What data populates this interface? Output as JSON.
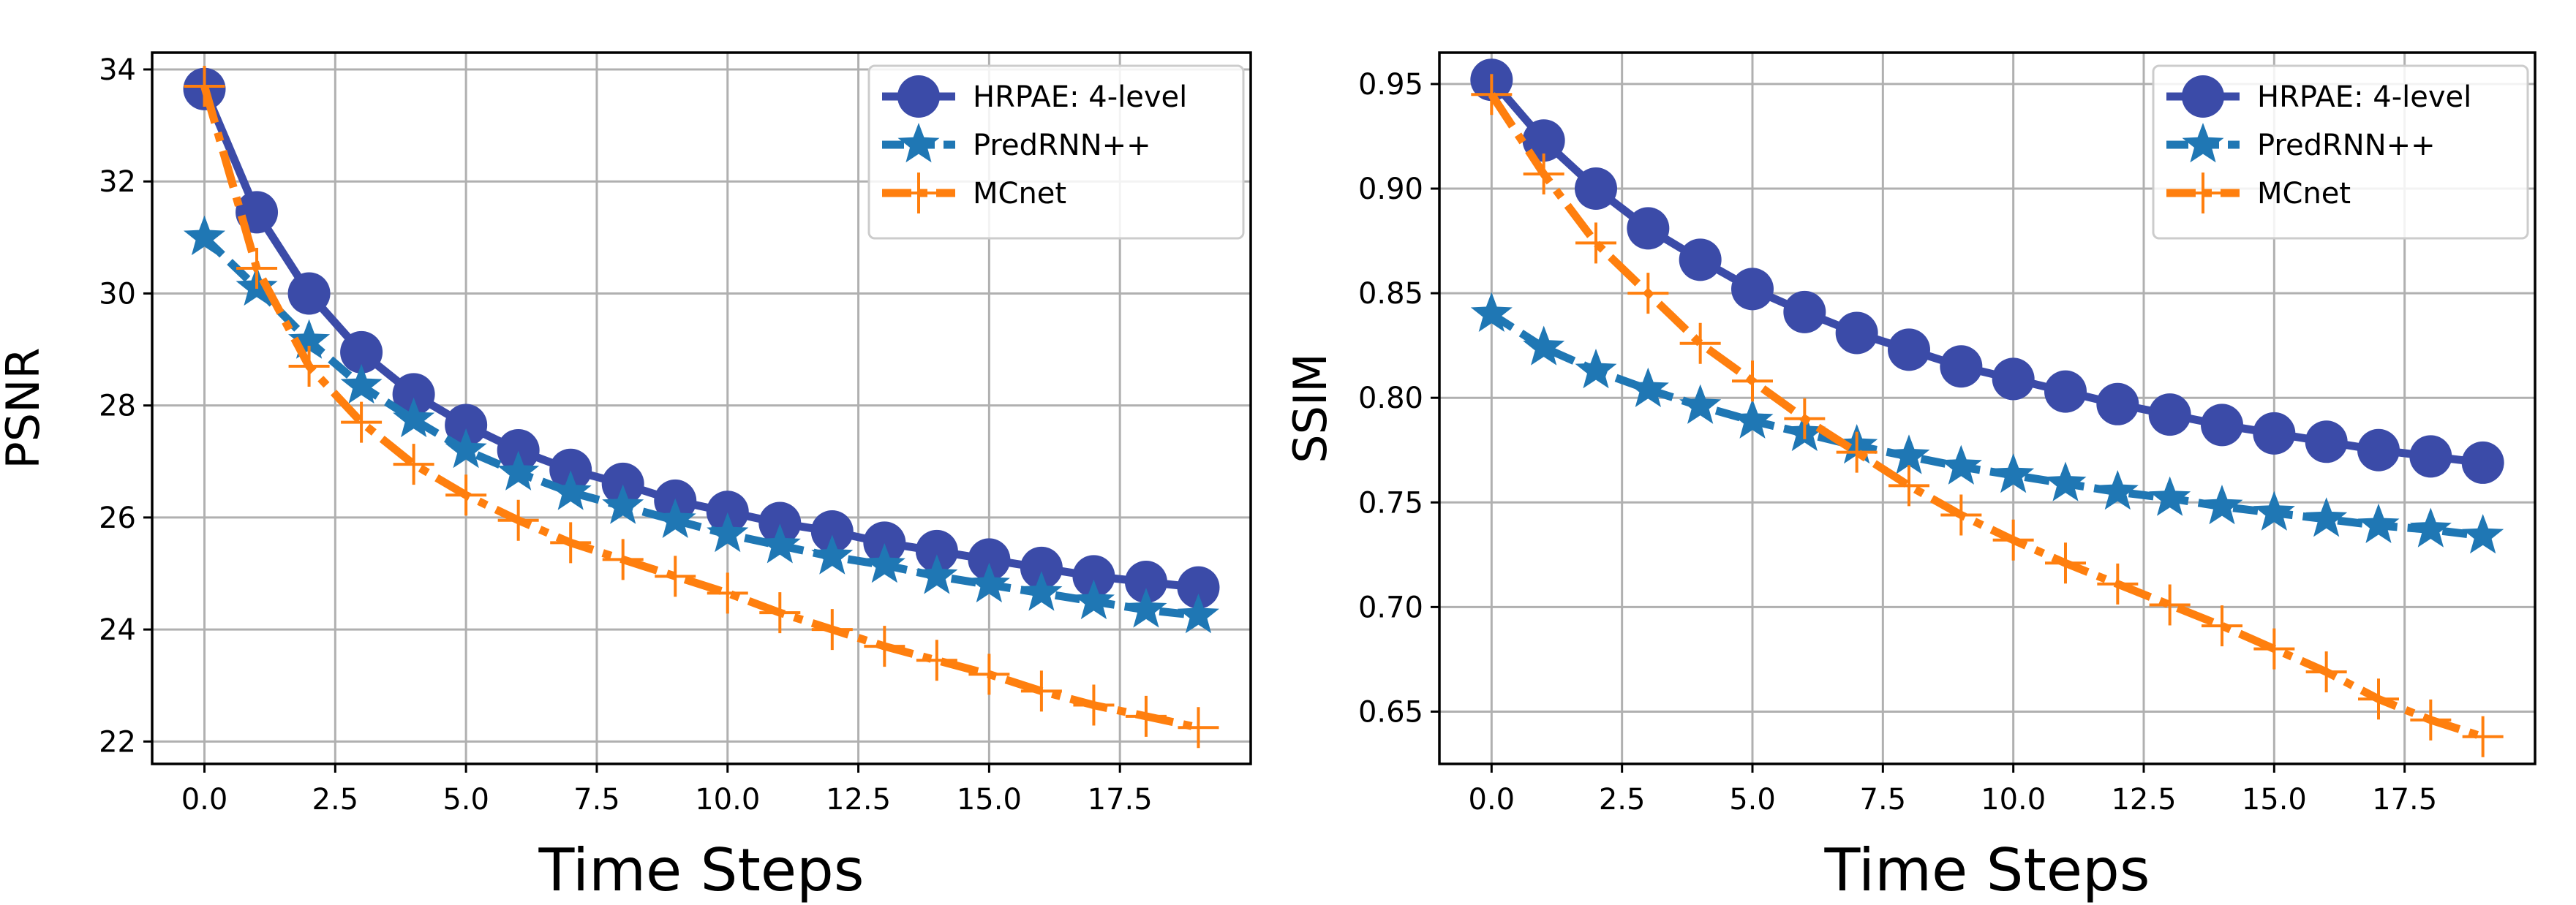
{
  "chart_data": [
    {
      "type": "line",
      "title": "",
      "xlabel": "Time Steps",
      "ylabel": "PSNR",
      "xlim": [
        -1,
        20
      ],
      "ylim": [
        21.6,
        34.3
      ],
      "xticks": [
        0,
        2.5,
        5,
        7.5,
        10,
        12.5,
        15,
        17.5
      ],
      "xtick_labels": [
        "0.0",
        "2.5",
        "5.0",
        "7.5",
        "10.0",
        "12.5",
        "15.0",
        "17.5"
      ],
      "yticks": [
        22,
        24,
        26,
        28,
        30,
        32,
        34
      ],
      "ytick_labels": [
        "22",
        "24",
        "26",
        "28",
        "30",
        "32",
        "34"
      ],
      "grid": true,
      "legend_position": "top-right",
      "x": [
        0,
        1,
        2,
        3,
        4,
        5,
        6,
        7,
        8,
        9,
        10,
        11,
        12,
        13,
        14,
        15,
        16,
        17,
        18,
        19
      ],
      "series": [
        {
          "name": "HRPAE: 4-level",
          "marker": "circle",
          "color": "#3b4ba8",
          "values": [
            33.65,
            31.45,
            30.0,
            28.95,
            28.2,
            27.65,
            27.2,
            26.85,
            26.6,
            26.3,
            26.1,
            25.9,
            25.75,
            25.55,
            25.4,
            25.25,
            25.1,
            24.95,
            24.85,
            24.75
          ]
        },
        {
          "name": "PredRNN++",
          "marker": "star",
          "color": "#1f77b4",
          "values": [
            31.0,
            30.1,
            29.15,
            28.35,
            27.75,
            27.2,
            26.8,
            26.45,
            26.2,
            25.95,
            25.7,
            25.5,
            25.3,
            25.15,
            24.95,
            24.8,
            24.65,
            24.5,
            24.35,
            24.25
          ]
        },
        {
          "name": "MCnet",
          "marker": "plus",
          "color": "#ff7f0e",
          "values": [
            33.7,
            30.45,
            28.7,
            27.7,
            26.95,
            26.4,
            25.95,
            25.55,
            25.25,
            24.95,
            24.65,
            24.3,
            24.0,
            23.7,
            23.45,
            23.2,
            22.9,
            22.65,
            22.45,
            22.25
          ]
        }
      ]
    },
    {
      "type": "line",
      "title": "",
      "xlabel": "Time Steps",
      "ylabel": "SSIM",
      "xlim": [
        -1,
        20
      ],
      "ylim": [
        0.625,
        0.965
      ],
      "xticks": [
        0,
        2.5,
        5,
        7.5,
        10,
        12.5,
        15,
        17.5
      ],
      "xtick_labels": [
        "0.0",
        "2.5",
        "5.0",
        "7.5",
        "10.0",
        "12.5",
        "15.0",
        "17.5"
      ],
      "yticks": [
        0.65,
        0.7,
        0.75,
        0.8,
        0.85,
        0.9,
        0.95
      ],
      "ytick_labels": [
        "0.65",
        "0.70",
        "0.75",
        "0.80",
        "0.85",
        "0.90",
        "0.95"
      ],
      "grid": true,
      "legend_position": "top-right",
      "x": [
        0,
        1,
        2,
        3,
        4,
        5,
        6,
        7,
        8,
        9,
        10,
        11,
        12,
        13,
        14,
        15,
        16,
        17,
        18,
        19
      ],
      "series": [
        {
          "name": "HRPAE: 4-level",
          "marker": "circle",
          "color": "#3b4ba8",
          "values": [
            0.952,
            0.923,
            0.9,
            0.881,
            0.866,
            0.852,
            0.841,
            0.831,
            0.823,
            0.815,
            0.809,
            0.803,
            0.797,
            0.792,
            0.787,
            0.783,
            0.779,
            0.775,
            0.772,
            0.769
          ]
        },
        {
          "name": "PredRNN++",
          "marker": "star",
          "color": "#1f77b4",
          "values": [
            0.84,
            0.824,
            0.813,
            0.804,
            0.796,
            0.789,
            0.783,
            0.777,
            0.772,
            0.767,
            0.763,
            0.759,
            0.755,
            0.752,
            0.748,
            0.745,
            0.742,
            0.739,
            0.737,
            0.734
          ]
        },
        {
          "name": "MCnet",
          "marker": "plus",
          "color": "#ff7f0e",
          "values": [
            0.945,
            0.907,
            0.874,
            0.85,
            0.826,
            0.808,
            0.79,
            0.774,
            0.758,
            0.744,
            0.732,
            0.721,
            0.711,
            0.701,
            0.691,
            0.68,
            0.669,
            0.656,
            0.646,
            0.638
          ]
        }
      ]
    }
  ]
}
